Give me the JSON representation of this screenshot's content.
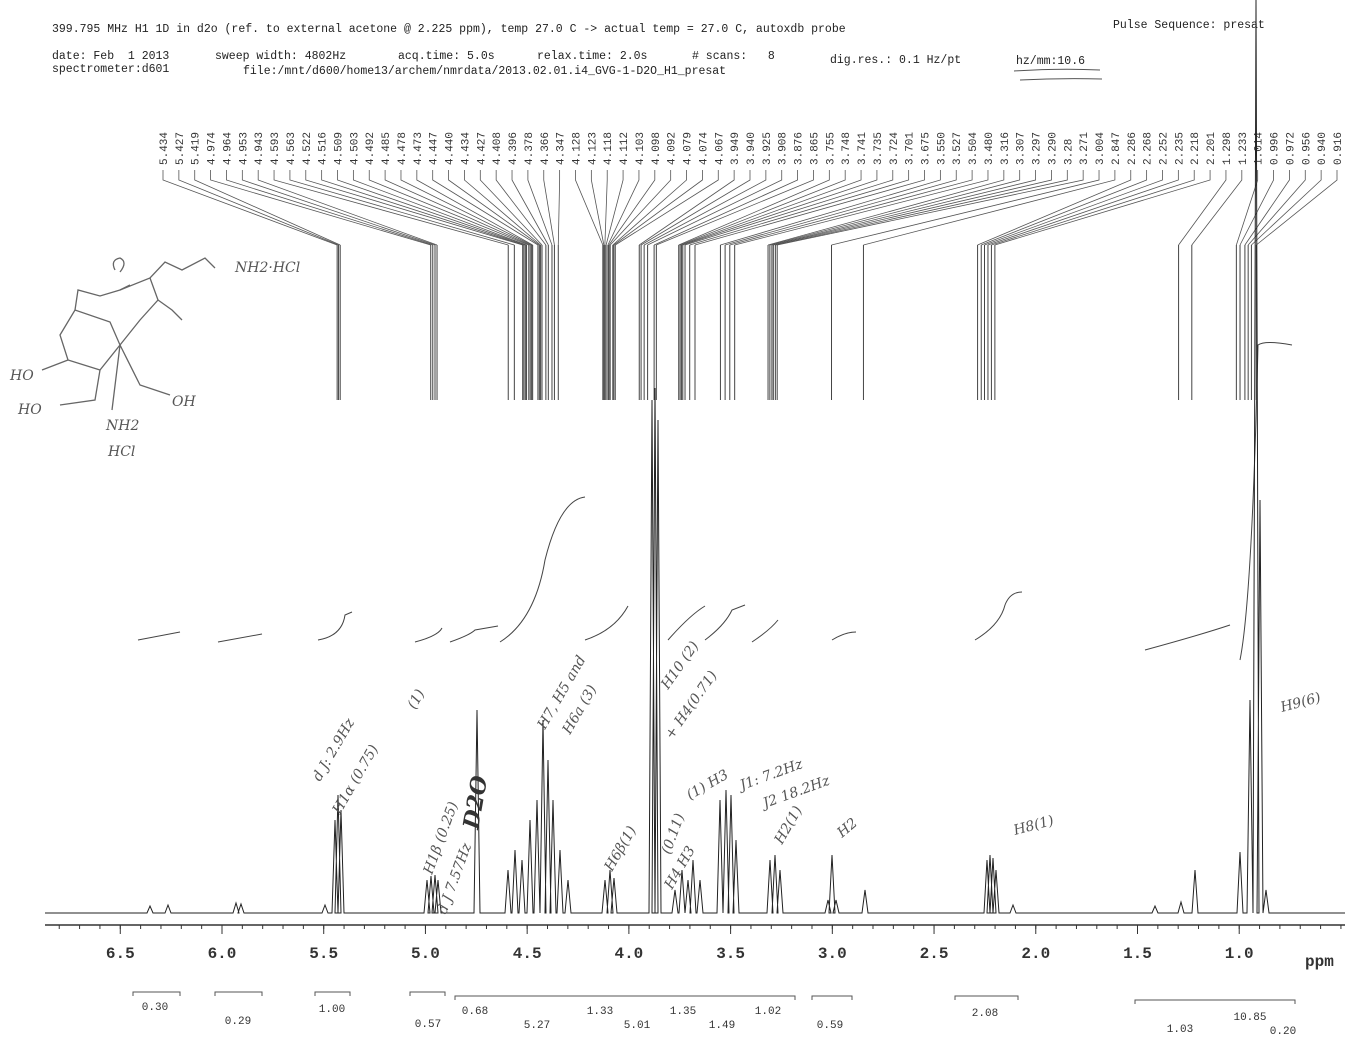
{
  "header": {
    "line1": "399.795 MHz H1 1D in d2o (ref. to external acetone @ 2.225 ppm), temp 27.0 C -> actual temp = 27.0 C, autoxdb probe",
    "pulse_sequence": "Pulse Sequence: presat",
    "date": "date: Feb  1 2013",
    "sweep_width": "sweep width: 4802Hz",
    "acq_time": "acq.time: 5.0s",
    "relax_time": "relax.time: 2.0s",
    "scans": "# scans:   8",
    "dig_res": "dig.res.: 0.1 Hz/pt",
    "hz_mm": "hz/mm:10.6",
    "spectrometer": "spectrometer:d601",
    "file": "file:/mnt/d600/home13/archem/nmrdata/2013.02.01.i4_GVG-1-D2O_H1_presat"
  },
  "chart_data": {
    "type": "nmr",
    "x_label": "ppm",
    "xlim": [
      6.87,
      0.48
    ],
    "xticks": [
      6.5,
      {
        "value": 6,
        "label": "6.0"
      },
      5.5,
      {
        "value": 5,
        "label": "5.0"
      },
      4.5,
      {
        "value": 4,
        "label": "4.0"
      },
      3.5,
      {
        "value": 3,
        "label": "3.0"
      },
      2.5,
      {
        "value": 2,
        "label": "2.0"
      },
      1.5,
      {
        "value": 1,
        "label": "1.0"
      }
    ],
    "peaks": [
      5.434,
      5.427,
      5.419,
      4.974,
      4.964,
      4.953,
      4.943,
      4.593,
      4.563,
      4.522,
      4.516,
      4.509,
      4.503,
      4.492,
      4.485,
      4.478,
      4.473,
      4.447,
      {
        "value": 4.44,
        "label": "4.440"
      },
      4.434,
      4.427,
      4.408,
      4.396,
      4.378,
      4.366,
      4.347,
      4.128,
      4.123,
      4.118,
      4.112,
      4.103,
      4.098,
      4.092,
      4.079,
      4.074,
      4.067,
      3.949,
      {
        "value": 3.94,
        "label": "3.940"
      },
      3.925,
      3.908,
      3.876,
      3.865,
      3.755,
      3.748,
      3.741,
      3.735,
      3.724,
      3.701,
      3.675,
      {
        "value": 3.55,
        "label": "3.550"
      },
      3.527,
      3.504,
      {
        "value": 3.48,
        "label": "3.480"
      },
      3.316,
      3.307,
      3.297,
      {
        "value": 3.29,
        "label": "3.290"
      },
      3.28,
      3.271,
      3.004,
      2.847,
      2.286,
      2.268,
      2.252,
      2.235,
      2.218,
      2.201,
      1.298,
      1.233,
      1.014,
      0.996,
      0.972,
      0.956,
      {
        "value": 0.94,
        "label": "0.940"
      },
      0.916
    ],
    "integral_labels": [
      "0.30",
      "0.29",
      "1.00",
      "0.57",
      "0.68",
      "5.27",
      "1.33",
      "5.01",
      "1.35",
      "1.49",
      "1.02",
      "0.59",
      "2.08",
      "1.03",
      "10.85",
      "0.20"
    ],
    "annotations": [
      "H9(6)",
      "H8(1)",
      "D2O",
      "J1: 7.2Hz",
      "J2 18.2Hz",
      "H2(1)",
      "H2",
      "H4 H3",
      "(0.11)",
      "(1) H3",
      "H6β(1)",
      "H7, H5 and",
      "H6a (3)",
      "H10 (2)",
      "+ H4(0.71)",
      "H1α (0.75)",
      "d J: 2.9Hz",
      "(1)",
      "H1β (0.25)",
      "d J 7.57Hz"
    ]
  },
  "structure": [
    "NH2·HCl",
    "OH",
    "HO",
    "HO",
    "NH2",
    "HCl"
  ]
}
